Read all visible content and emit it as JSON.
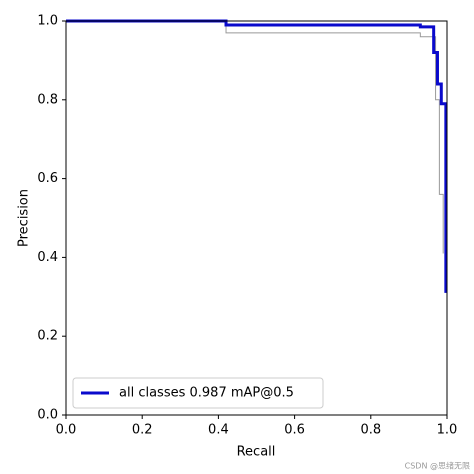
{
  "chart_data": {
    "type": "line",
    "xlabel": "Recall",
    "ylabel": "Precision",
    "xlim": [
      0,
      1
    ],
    "ylim": [
      0,
      1
    ],
    "xticks": [
      {
        "value": 0,
        "label": "0.0"
      },
      0.2,
      0.4,
      0.6,
      0.8,
      {
        "value": 1,
        "label": "1.0"
      }
    ],
    "yticks": [
      {
        "value": 0,
        "label": "0.0"
      },
      0.2,
      0.4,
      0.6,
      0.8,
      {
        "value": 1,
        "label": "1.0"
      }
    ],
    "legend": "lower left",
    "series": [
      {
        "color": "#999999",
        "width": 1,
        "x": [
          0,
          0.42,
          0.42,
          0.93,
          0.93,
          0.97,
          0.97,
          0.98,
          0.98,
          0.99,
          0.99
        ],
        "values": [
          1,
          1,
          0.97,
          0.97,
          0.96,
          0.96,
          0.8,
          0.8,
          0.56,
          0.56,
          0.41
        ]
      },
      {
        "name": "all classes 0.987 mAP@0.5",
        "color": "#0a0acc",
        "width": 3,
        "x": [
          0,
          0.42,
          0.42,
          0.93,
          0.93,
          0.965,
          0.965,
          0.975,
          0.975,
          0.985,
          0.985,
          0.997,
          0.997
        ],
        "values": [
          1,
          1,
          0.99,
          0.99,
          0.985,
          0.985,
          0.92,
          0.92,
          0.84,
          0.84,
          0.79,
          0.79,
          0.31
        ]
      }
    ],
    "watermark": "CSDN @思绪无限"
  }
}
